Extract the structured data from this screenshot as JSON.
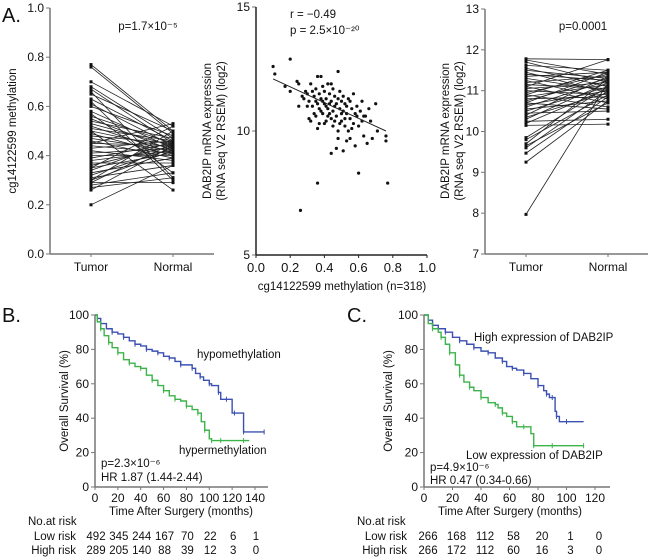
{
  "chart_data": [
    {
      "id": "A1",
      "panel_label": "A.",
      "type": "line",
      "subtype": "paired",
      "title": "",
      "annotation": "p=1.7×10⁻⁵",
      "categories": [
        "Tumor",
        "Normal"
      ],
      "xlabel": "",
      "ylabel": "cg14122599 methylation",
      "ylim": [
        0.0,
        1.0
      ],
      "yticks": [
        "0.0",
        "0.2",
        "0.4",
        "0.6",
        "0.8",
        "1.0"
      ],
      "tumor_range": [
        0.2,
        0.77
      ],
      "normal_range": [
        0.26,
        0.53
      ],
      "pairs_sample": [
        [
          0.77,
          0.5
        ],
        [
          0.76,
          0.49
        ],
        [
          0.7,
          0.52
        ],
        [
          0.68,
          0.47
        ],
        [
          0.67,
          0.45
        ],
        [
          0.65,
          0.5
        ],
        [
          0.63,
          0.46
        ],
        [
          0.61,
          0.44
        ],
        [
          0.6,
          0.48
        ],
        [
          0.58,
          0.43
        ],
        [
          0.56,
          0.45
        ],
        [
          0.55,
          0.42
        ],
        [
          0.54,
          0.47
        ],
        [
          0.53,
          0.44
        ],
        [
          0.52,
          0.41
        ],
        [
          0.51,
          0.46
        ],
        [
          0.5,
          0.43
        ],
        [
          0.49,
          0.4
        ],
        [
          0.48,
          0.45
        ],
        [
          0.47,
          0.42
        ],
        [
          0.46,
          0.39
        ],
        [
          0.45,
          0.44
        ],
        [
          0.44,
          0.41
        ],
        [
          0.43,
          0.46
        ],
        [
          0.42,
          0.38
        ],
        [
          0.41,
          0.43
        ],
        [
          0.4,
          0.4
        ],
        [
          0.39,
          0.45
        ],
        [
          0.38,
          0.42
        ],
        [
          0.37,
          0.37
        ],
        [
          0.36,
          0.44
        ],
        [
          0.35,
          0.41
        ],
        [
          0.34,
          0.46
        ],
        [
          0.33,
          0.39
        ],
        [
          0.32,
          0.43
        ],
        [
          0.31,
          0.36
        ],
        [
          0.3,
          0.42
        ],
        [
          0.29,
          0.45
        ],
        [
          0.28,
          0.33
        ],
        [
          0.27,
          0.31
        ],
        [
          0.26,
          0.44
        ],
        [
          0.2,
          0.36
        ],
        [
          0.62,
          0.3
        ],
        [
          0.57,
          0.33
        ],
        [
          0.45,
          0.53
        ],
        [
          0.35,
          0.52
        ],
        [
          0.3,
          0.5
        ],
        [
          0.29,
          0.29
        ],
        [
          0.66,
          0.31
        ],
        [
          0.5,
          0.26
        ]
      ]
    },
    {
      "id": "A2",
      "type": "scatter",
      "title": "",
      "annotations": [
        "r = −0.49",
        "p = 2.5×10⁻²⁰"
      ],
      "xlabel": "cg14122599 methylation (n=318)",
      "ylabel": [
        "DAB2IP mRNA expression",
        "(RNA seq V2 RSEM) (log2)"
      ],
      "xlim": [
        0.0,
        1.0
      ],
      "ylim": [
        5,
        15
      ],
      "xticks": [
        "0.0",
        "0.2",
        "0.4",
        "0.6",
        "0.8",
        "1.0"
      ],
      "yticks": [
        "5",
        "10",
        "15"
      ],
      "fit_line": {
        "x": [
          0.1,
          0.76
        ],
        "y": [
          12.1,
          10.0
        ]
      },
      "points_sample": [
        [
          0.1,
          12.6
        ],
        [
          0.11,
          12.3
        ],
        [
          0.17,
          11.8
        ],
        [
          0.2,
          12.9
        ],
        [
          0.2,
          11.6
        ],
        [
          0.24,
          12.0
        ],
        [
          0.25,
          11.9
        ],
        [
          0.25,
          11.0
        ],
        [
          0.26,
          6.8
        ],
        [
          0.28,
          11.3
        ],
        [
          0.29,
          11.6
        ],
        [
          0.3,
          11.5
        ],
        [
          0.31,
          11.2
        ],
        [
          0.31,
          10.5
        ],
        [
          0.32,
          11.9
        ],
        [
          0.33,
          11.0
        ],
        [
          0.34,
          11.4
        ],
        [
          0.34,
          10.7
        ],
        [
          0.35,
          11.7
        ],
        [
          0.35,
          11.2
        ],
        [
          0.36,
          10.1
        ],
        [
          0.36,
          7.9
        ],
        [
          0.36,
          12.2
        ],
        [
          0.37,
          11.5
        ],
        [
          0.37,
          10.9
        ],
        [
          0.38,
          11.3
        ],
        [
          0.38,
          12.2
        ],
        [
          0.39,
          10.7
        ],
        [
          0.39,
          11.8
        ],
        [
          0.4,
          11.1
        ],
        [
          0.4,
          11.6
        ],
        [
          0.41,
          10.4
        ],
        [
          0.41,
          11.3
        ],
        [
          0.42,
          11.9
        ],
        [
          0.42,
          10.9
        ],
        [
          0.43,
          11.5
        ],
        [
          0.43,
          10.7
        ],
        [
          0.44,
          11.2
        ],
        [
          0.44,
          9.1
        ],
        [
          0.45,
          11.7
        ],
        [
          0.45,
          10.2
        ],
        [
          0.46,
          11.0
        ],
        [
          0.46,
          11.4
        ],
        [
          0.47,
          10.6
        ],
        [
          0.47,
          9.3
        ],
        [
          0.48,
          11.3
        ],
        [
          0.48,
          12.4
        ],
        [
          0.48,
          9.7
        ],
        [
          0.49,
          10.9
        ],
        [
          0.49,
          11.6
        ],
        [
          0.5,
          10.4
        ],
        [
          0.5,
          11.2
        ],
        [
          0.51,
          10.8
        ],
        [
          0.51,
          9.2
        ],
        [
          0.52,
          11.1
        ],
        [
          0.52,
          10.2
        ],
        [
          0.53,
          10.7
        ],
        [
          0.53,
          9.6
        ],
        [
          0.54,
          11.3
        ],
        [
          0.54,
          10.0
        ],
        [
          0.55,
          10.5
        ],
        [
          0.55,
          9.7
        ],
        [
          0.56,
          10.9
        ],
        [
          0.57,
          10.3
        ],
        [
          0.57,
          11.5
        ],
        [
          0.58,
          9.4
        ],
        [
          0.59,
          10.6
        ],
        [
          0.59,
          11.0
        ],
        [
          0.6,
          8.3
        ],
        [
          0.6,
          10.2
        ],
        [
          0.61,
          10.8
        ],
        [
          0.62,
          10.4
        ],
        [
          0.63,
          9.8
        ],
        [
          0.64,
          10.6
        ],
        [
          0.65,
          9.5
        ],
        [
          0.66,
          10.9
        ],
        [
          0.67,
          10.4
        ],
        [
          0.68,
          9.7
        ],
        [
          0.7,
          11.1
        ],
        [
          0.71,
          10.0
        ],
        [
          0.76,
          9.6
        ],
        [
          0.76,
          9.8
        ],
        [
          0.77,
          7.9
        ],
        [
          0.41,
          11.0
        ],
        [
          0.43,
          11.1
        ],
        [
          0.39,
          11.2
        ],
        [
          0.45,
          10.8
        ],
        [
          0.47,
          11.1
        ],
        [
          0.44,
          10.5
        ],
        [
          0.5,
          10.7
        ],
        [
          0.42,
          10.6
        ],
        [
          0.38,
          10.8
        ],
        [
          0.46,
          10.4
        ],
        [
          0.52,
          10.5
        ],
        [
          0.36,
          11.1
        ],
        [
          0.33,
          11.6
        ],
        [
          0.4,
          10.3
        ],
        [
          0.53,
          11.0
        ],
        [
          0.56,
          10.1
        ],
        [
          0.48,
          10.0
        ],
        [
          0.37,
          10.3
        ],
        [
          0.35,
          10.6
        ],
        [
          0.58,
          10.7
        ],
        [
          0.62,
          11.2
        ],
        [
          0.3,
          11.0
        ],
        [
          0.27,
          11.4
        ],
        [
          0.44,
          11.9
        ],
        [
          0.49,
          10.3
        ],
        [
          0.51,
          11.4
        ],
        [
          0.55,
          11.2
        ],
        [
          0.32,
          10.4
        ],
        [
          0.63,
          10.6
        ]
      ]
    },
    {
      "id": "A3",
      "type": "line",
      "subtype": "paired",
      "title": "",
      "annotation": "p=0.0001",
      "categories": [
        "Tumor",
        "Normal"
      ],
      "xlabel": "",
      "ylabel": [
        "DAB2IP mRNA expression",
        "(RNA seq V2 RSEM) (log2)"
      ],
      "ylim": [
        7,
        13
      ],
      "yticks": [
        "7",
        "8",
        "9",
        "10",
        "11",
        "12",
        "13"
      ],
      "tumor_range": [
        7.97,
        11.78
      ],
      "normal_range": [
        10.18,
        11.76
      ],
      "pairs_sample": [
        [
          11.78,
          11.76
        ],
        [
          11.75,
          11.4
        ],
        [
          11.7,
          11.2
        ],
        [
          11.62,
          11.5
        ],
        [
          11.55,
          11.1
        ],
        [
          11.5,
          11.3
        ],
        [
          11.45,
          10.95
        ],
        [
          11.4,
          11.25
        ],
        [
          11.35,
          11.45
        ],
        [
          11.3,
          11.0
        ],
        [
          11.25,
          10.8
        ],
        [
          11.2,
          11.35
        ],
        [
          11.15,
          11.05
        ],
        [
          11.1,
          10.7
        ],
        [
          11.05,
          11.2
        ],
        [
          11.0,
          10.9
        ],
        [
          10.95,
          11.4
        ],
        [
          10.9,
          10.6
        ],
        [
          10.85,
          11.15
        ],
        [
          10.8,
          10.85
        ],
        [
          10.75,
          11.3
        ],
        [
          10.7,
          10.55
        ],
        [
          10.65,
          11.0
        ],
        [
          10.6,
          11.25
        ],
        [
          10.55,
          10.75
        ],
        [
          10.5,
          11.1
        ],
        [
          10.45,
          10.5
        ],
        [
          10.4,
          11.35
        ],
        [
          10.35,
          10.95
        ],
        [
          10.3,
          11.2
        ],
        [
          10.25,
          10.3
        ],
        [
          10.2,
          11.05
        ],
        [
          10.15,
          10.18
        ],
        [
          9.85,
          11.1
        ],
        [
          9.8,
          10.9
        ],
        [
          9.7,
          11.3
        ],
        [
          9.65,
          10.7
        ],
        [
          9.6,
          11.0
        ],
        [
          9.47,
          10.85
        ],
        [
          9.25,
          10.75
        ],
        [
          7.97,
          11.2
        ],
        [
          11.1,
          11.76
        ],
        [
          10.9,
          11.5
        ],
        [
          10.7,
          11.45
        ]
      ]
    },
    {
      "id": "B",
      "panel_label": "B.",
      "type": "line",
      "subtype": "kaplan-meier",
      "title": "",
      "xlabel": "Time After Surgery (months)",
      "ylabel": "Overall Survival (%)",
      "xlim": [
        0,
        150
      ],
      "ylim": [
        0,
        100
      ],
      "xticks": [
        "0",
        "20",
        "40",
        "60",
        "80",
        "100",
        "120",
        "140"
      ],
      "yticks": [
        "0",
        "20",
        "40",
        "60",
        "80",
        "100"
      ],
      "annotations": [
        "p=2.3×10⁻⁶",
        "HR 1.87 (1.44-2.44)"
      ],
      "series": [
        {
          "name": "hypomethylation",
          "color": "#3b50b2",
          "x": [
            0,
            2,
            5,
            10,
            15,
            20,
            25,
            30,
            35,
            40,
            45,
            50,
            55,
            60,
            65,
            70,
            75,
            80,
            85,
            88,
            92,
            95,
            100,
            102,
            108,
            110,
            115,
            120,
            122,
            128,
            130,
            135,
            148
          ],
          "y": [
            100,
            98,
            95,
            92,
            90,
            89,
            87,
            85,
            83,
            82,
            80,
            79,
            78,
            76,
            75,
            73,
            71,
            71,
            69,
            66,
            64,
            62,
            60,
            59,
            55,
            51,
            51,
            43,
            43,
            43,
            32,
            32,
            32
          ]
        },
        {
          "name": "hypermethylation",
          "color": "#3cb44a",
          "x": [
            0,
            2,
            5,
            8,
            12,
            15,
            20,
            25,
            30,
            35,
            40,
            45,
            50,
            55,
            60,
            65,
            70,
            75,
            80,
            85,
            90,
            93,
            96,
            100,
            102,
            105,
            110,
            120,
            130,
            135
          ],
          "y": [
            100,
            96,
            92,
            88,
            84,
            81,
            78,
            74,
            72,
            70,
            69,
            65,
            62,
            59,
            56,
            53,
            51,
            50,
            47,
            45,
            43,
            38,
            33,
            28,
            27,
            27,
            27,
            27,
            27,
            27
          ]
        }
      ],
      "risk_table": {
        "header": "No.at risk",
        "rows": [
          {
            "label": "Low risk",
            "values": [
              "492",
              "345",
              "244",
              "167",
              "70",
              "22",
              "6",
              "1"
            ]
          },
          {
            "label": "High risk",
            "values": [
              "289",
              "205",
              "140",
              "88",
              "39",
              "12",
              "3",
              "0"
            ]
          }
        ]
      }
    },
    {
      "id": "C",
      "panel_label": "C.",
      "type": "line",
      "subtype": "kaplan-meier",
      "title": "",
      "xlabel": "Time After Surgery (months)",
      "ylabel": "Overall Survival (%)",
      "xlim": [
        0,
        120
      ],
      "ylim": [
        0,
        100
      ],
      "xticks": [
        "0",
        "20",
        "40",
        "60",
        "80",
        "100",
        "120"
      ],
      "yticks": [
        "0",
        "20",
        "40",
        "60",
        "80",
        "100"
      ],
      "annotations": [
        "p=4.9×10⁻⁶",
        "HR 0.47 (0.34-0.66)"
      ],
      "series": [
        {
          "name": "High expression of DAB2IP",
          "color": "#3b50b2",
          "x": [
            0,
            3,
            6,
            10,
            15,
            20,
            25,
            30,
            35,
            40,
            45,
            50,
            55,
            58,
            62,
            65,
            70,
            75,
            80,
            84,
            86,
            88,
            90,
            92,
            93,
            95,
            100,
            112
          ],
          "y": [
            100,
            97,
            94,
            92,
            90,
            87,
            85,
            83,
            81,
            79,
            78,
            75,
            73,
            70,
            69,
            68,
            66,
            63,
            59,
            56,
            54,
            52,
            52,
            44,
            41,
            38,
            38,
            38
          ]
        },
        {
          "name": "Low expression of DAB2IP",
          "color": "#3cb44a",
          "x": [
            0,
            3,
            6,
            10,
            12,
            15,
            18,
            22,
            25,
            28,
            32,
            35,
            40,
            45,
            50,
            52,
            55,
            58,
            62,
            65,
            70,
            75,
            77,
            80,
            90,
            100,
            112
          ],
          "y": [
            100,
            95,
            92,
            90,
            87,
            83,
            78,
            71,
            65,
            61,
            58,
            56,
            52,
            49,
            48,
            46,
            43,
            41,
            38,
            35,
            35,
            31,
            24,
            24,
            24,
            24,
            24
          ]
        }
      ],
      "risk_table": {
        "header": "No.at risk",
        "rows": [
          {
            "label": "Low risk",
            "values": [
              "266",
              "168",
              "112",
              "58",
              "20",
              "1",
              "0"
            ]
          },
          {
            "label": "High risk",
            "values": [
              "266",
              "172",
              "112",
              "60",
              "16",
              "3",
              "0"
            ]
          }
        ]
      }
    }
  ]
}
